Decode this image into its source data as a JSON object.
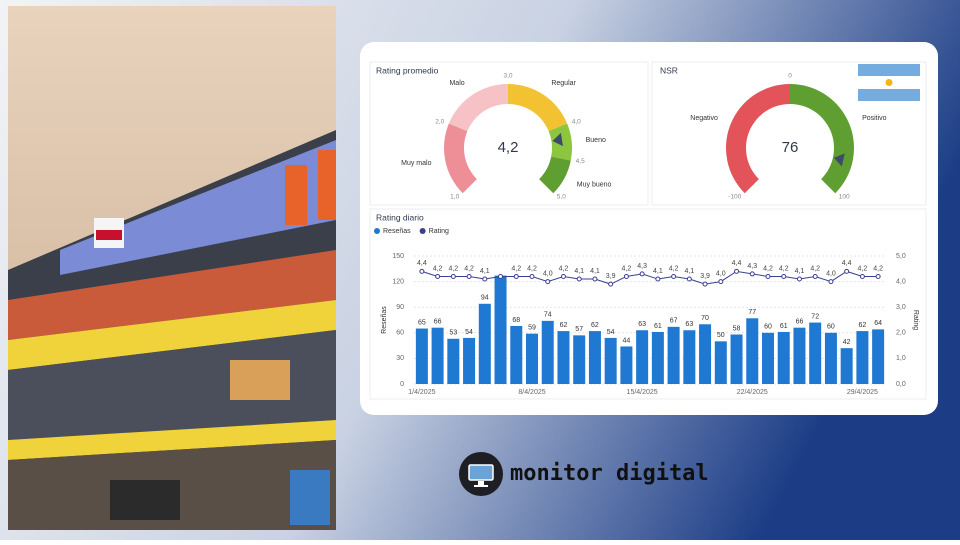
{
  "brand": "monitor digital",
  "chart_data": [
    {
      "type": "gauge",
      "title": "Rating promedio",
      "range": [
        1,
        5
      ],
      "value": 4.2,
      "value_label": "4,2",
      "marker_color": "#3d4a6b",
      "ticks": [
        {
          "value": 1,
          "label": "1,0"
        },
        {
          "value": 2,
          "label": "2,0"
        },
        {
          "value": 3,
          "label": "3,0"
        },
        {
          "value": 4,
          "label": "4,0"
        },
        {
          "value": 4.5,
          "label": "4,5"
        },
        {
          "value": 5,
          "label": "5,0"
        }
      ],
      "bands": [
        {
          "name": "Muy malo",
          "from": 1,
          "to": 2,
          "color": "#ee8f98"
        },
        {
          "name": "Malo",
          "from": 2,
          "to": 3,
          "color": "#f7c2c6"
        },
        {
          "name": "Regular",
          "from": 3,
          "to": 4,
          "color": "#f2c233"
        },
        {
          "name": "Bueno",
          "from": 4,
          "to": 4.5,
          "color": "#8cc63f"
        },
        {
          "name": "Muy bueno",
          "from": 4.5,
          "to": 5,
          "color": "#5f9e30"
        }
      ]
    },
    {
      "type": "gauge",
      "title": "NSR",
      "range": [
        -100,
        100
      ],
      "value": 76,
      "marker_color": "#3d4a6b",
      "ticks": [
        -100,
        0,
        100
      ],
      "bands": [
        {
          "name": "Negativo",
          "from": -100,
          "to": 0,
          "color": "#e2545a"
        },
        {
          "name": "Positivo",
          "from": 0,
          "to": 100,
          "color": "#5f9e30"
        }
      ]
    },
    {
      "type": "combo",
      "title": "Rating diario",
      "categories": [
        "1/4/2025",
        null,
        null,
        null,
        null,
        null,
        null,
        "8/4/2025",
        null,
        null,
        null,
        null,
        null,
        null,
        "15/4/2025",
        null,
        null,
        null,
        null,
        null,
        null,
        "22/4/2025",
        null,
        null,
        null,
        null,
        null,
        null,
        "29/4/2025",
        null
      ],
      "ylabel": "Reseñas",
      "y2label": "Rating",
      "grid": true,
      "ylim": [
        0,
        150
      ],
      "yticks": [
        0,
        30,
        60,
        90,
        120,
        150
      ],
      "y2lim": [
        0,
        5
      ],
      "y2ticks": [
        {
          "value": 0,
          "label": "0,0"
        },
        {
          "value": 1,
          "label": "1,0"
        },
        {
          "value": 2,
          "label": "2,0"
        },
        {
          "value": 3,
          "label": "3,0"
        },
        {
          "value": 4,
          "label": "4,0"
        },
        {
          "value": 5,
          "label": "5,0"
        }
      ],
      "series": [
        {
          "name": "Reseñas",
          "kind": "bar",
          "color": "#1f78d1",
          "values": [
            65,
            66,
            53,
            54,
            94,
            127,
            68,
            59,
            74,
            62,
            57,
            62,
            54,
            44,
            63,
            61,
            67,
            63,
            70,
            50,
            58,
            77,
            60,
            61,
            66,
            72,
            60,
            42,
            62,
            64
          ],
          "value_labels": [
            "65",
            "66",
            "53",
            "54",
            "94",
            null,
            "68",
            "59",
            "74",
            "62",
            "57",
            "62",
            "54",
            "44",
            "63",
            "61",
            "67",
            "63",
            "70",
            "50",
            "58",
            "77",
            "60",
            "61",
            "66",
            "72",
            "60",
            "42",
            "62",
            "64"
          ]
        },
        {
          "name": "Rating",
          "kind": "line",
          "axis": "y2",
          "color": "#3b3f8f",
          "values": [
            4.4,
            4.2,
            4.2,
            4.2,
            4.1,
            4.2,
            4.2,
            4.2,
            4.0,
            4.2,
            4.1,
            4.1,
            3.9,
            4.2,
            4.3,
            4.1,
            4.2,
            4.1,
            3.9,
            4.0,
            4.4,
            4.3,
            4.2,
            4.2,
            4.1,
            4.2,
            4.0,
            4.4,
            4.2,
            4.2
          ],
          "value_labels": [
            "4,4",
            "4,2",
            "4,2",
            "4,2",
            "4,1",
            null,
            "4,2",
            "4,2",
            "4,0",
            "4,2",
            "4,1",
            "4,1",
            "3,9",
            "4,2",
            "4,3",
            "4,1",
            "4,2",
            "4,1",
            "3,9",
            "4,0",
            "4,4",
            "4,3",
            "4,2",
            "4,2",
            "4,1",
            "4,2",
            "4,0",
            "4,4",
            "4,2",
            "4,2"
          ]
        }
      ]
    }
  ]
}
